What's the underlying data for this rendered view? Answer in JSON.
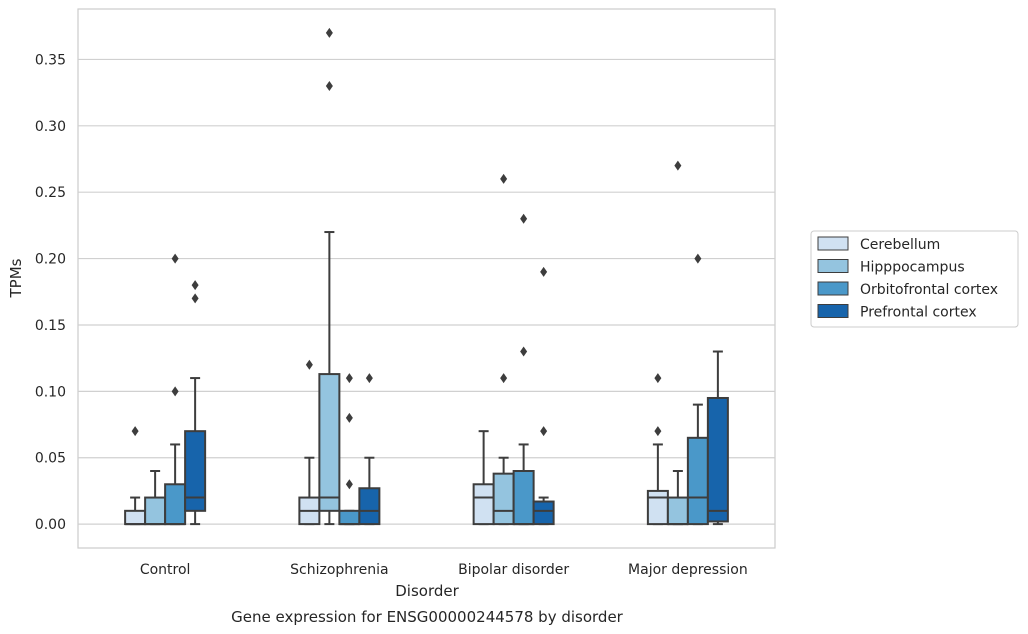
{
  "chart_data": {
    "type": "box",
    "xlabel": "Disorder",
    "ylabel": "TPMs",
    "caption": "Gene expression for ENSG00000244578 by disorder",
    "ylim": [
      -0.018,
      0.388
    ],
    "yticks": [
      "0.00",
      "0.05",
      "0.10",
      "0.15",
      "0.20",
      "0.25",
      "0.30",
      "0.35"
    ],
    "ytick_values": [
      0,
      0.05,
      0.1,
      0.15,
      0.2,
      0.25,
      0.3,
      0.35
    ],
    "grid": "horizontal",
    "legend_position": "right",
    "categories": [
      "Control",
      "Schizophrenia",
      "Bipolar disorder",
      "Major depression"
    ],
    "series": [
      {
        "name": "Cerebellum",
        "color": "#d0e1f2",
        "boxes": [
          {
            "q1": 0.0,
            "median": 0.0,
            "q3": 0.01,
            "whisker_low": 0.0,
            "whisker_high": 0.02,
            "outliers": [
              0.07
            ]
          },
          {
            "q1": 0.0,
            "median": 0.01,
            "q3": 0.02,
            "whisker_low": 0.0,
            "whisker_high": 0.05,
            "outliers": [
              0.12
            ]
          },
          {
            "q1": 0.0,
            "median": 0.02,
            "q3": 0.03,
            "whisker_low": 0.0,
            "whisker_high": 0.07,
            "outliers": []
          },
          {
            "q1": 0.0,
            "median": 0.02,
            "q3": 0.025,
            "whisker_low": 0.0,
            "whisker_high": 0.06,
            "outliers": [
              0.07,
              0.11
            ]
          }
        ]
      },
      {
        "name": "Hipppocampus",
        "color": "#94c4df",
        "boxes": [
          {
            "q1": 0.0,
            "median": 0.0,
            "q3": 0.02,
            "whisker_low": 0.0,
            "whisker_high": 0.04,
            "outliers": []
          },
          {
            "q1": 0.01,
            "median": 0.02,
            "q3": 0.113,
            "whisker_low": 0.0,
            "whisker_high": 0.22,
            "outliers": [
              0.33,
              0.37
            ]
          },
          {
            "q1": 0.0,
            "median": 0.01,
            "q3": 0.038,
            "whisker_low": 0.0,
            "whisker_high": 0.05,
            "outliers": [
              0.11,
              0.26
            ]
          },
          {
            "q1": 0.0,
            "median": 0.0,
            "q3": 0.02,
            "whisker_low": 0.0,
            "whisker_high": 0.04,
            "outliers": [
              0.27
            ]
          }
        ]
      },
      {
        "name": "Orbitofrontal cortex",
        "color": "#4a98c9",
        "boxes": [
          {
            "q1": 0.0,
            "median": 0.0,
            "q3": 0.03,
            "whisker_low": 0.0,
            "whisker_high": 0.06,
            "outliers": [
              0.1,
              0.2
            ]
          },
          {
            "q1": 0.0,
            "median": 0.0,
            "q3": 0.01,
            "whisker_low": 0.0,
            "whisker_high": 0.01,
            "outliers": [
              0.03,
              0.08,
              0.11
            ]
          },
          {
            "q1": 0.0,
            "median": 0.0,
            "q3": 0.04,
            "whisker_low": 0.0,
            "whisker_high": 0.06,
            "outliers": [
              0.13,
              0.23
            ]
          },
          {
            "q1": 0.0,
            "median": 0.02,
            "q3": 0.065,
            "whisker_low": 0.0,
            "whisker_high": 0.09,
            "outliers": [
              0.2
            ]
          }
        ]
      },
      {
        "name": "Prefrontal cortex",
        "color": "#1764ab",
        "boxes": [
          {
            "q1": 0.01,
            "median": 0.02,
            "q3": 0.07,
            "whisker_low": 0.0,
            "whisker_high": 0.11,
            "outliers": [
              0.17,
              0.18
            ]
          },
          {
            "q1": 0.0,
            "median": 0.01,
            "q3": 0.027,
            "whisker_low": 0.0,
            "whisker_high": 0.05,
            "outliers": [
              0.11
            ]
          },
          {
            "q1": 0.0,
            "median": 0.01,
            "q3": 0.017,
            "whisker_low": 0.0,
            "whisker_high": 0.02,
            "outliers": [
              0.07,
              0.19
            ]
          },
          {
            "q1": 0.002,
            "median": 0.01,
            "q3": 0.095,
            "whisker_low": 0.0,
            "whisker_high": 0.13,
            "outliers": []
          }
        ]
      }
    ]
  }
}
